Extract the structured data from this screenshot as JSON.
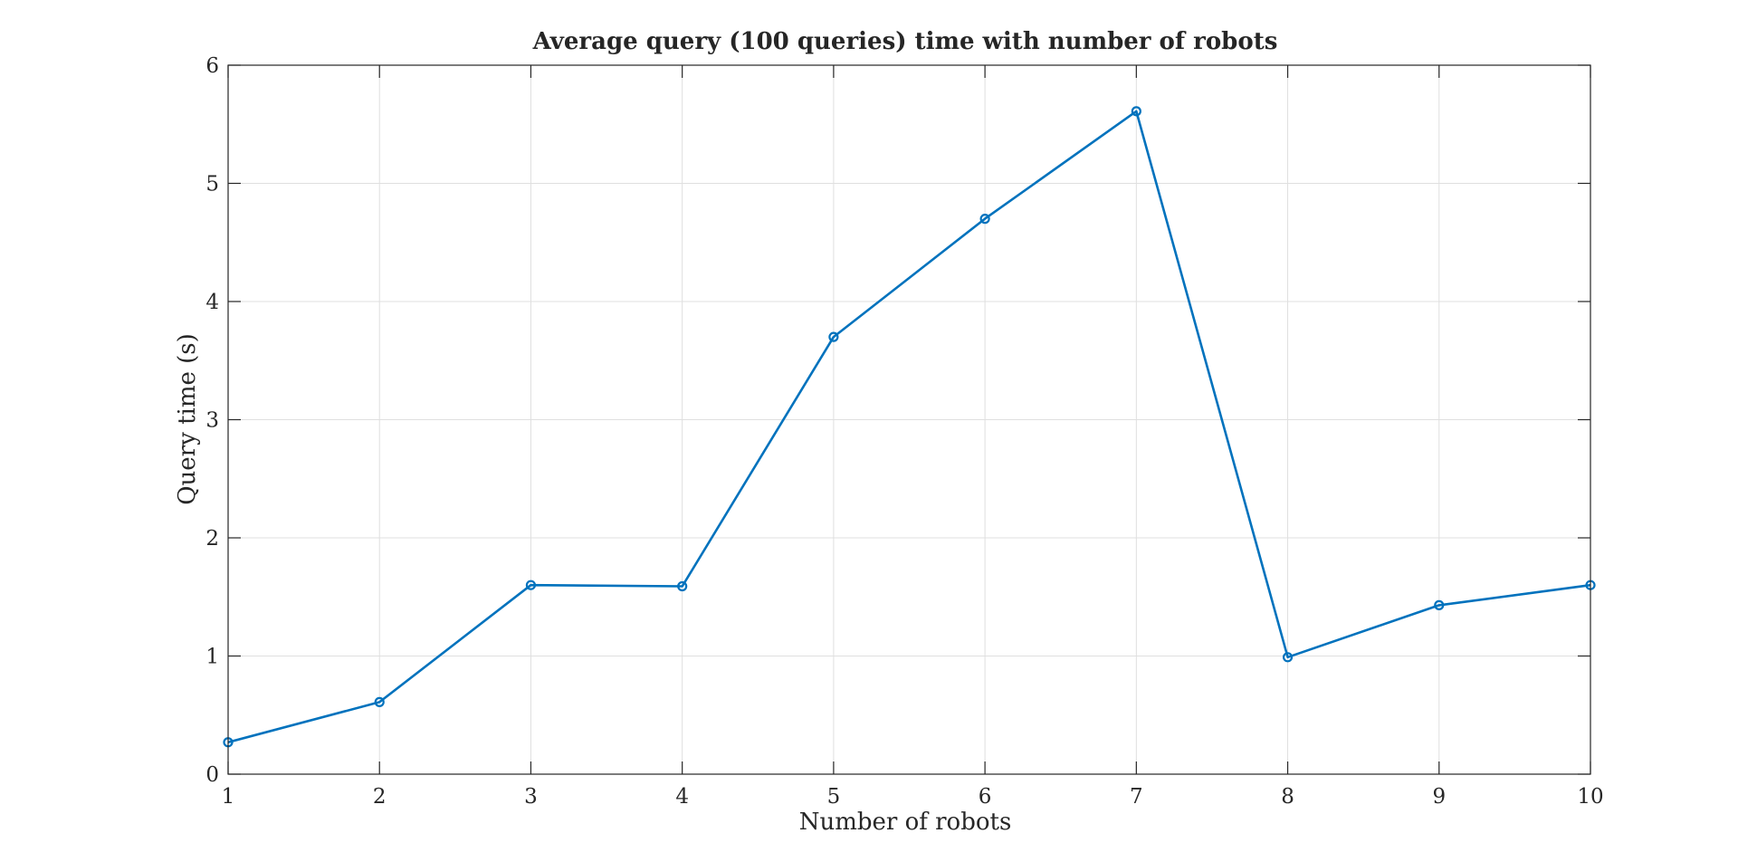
{
  "chart_data": {
    "type": "line",
    "title": "Average query (100 queries) time with number of robots",
    "xlabel": "Number of robots",
    "ylabel": "Query time (s)",
    "xlim": [
      1,
      10
    ],
    "ylim": [
      0,
      6
    ],
    "xticks": [
      1,
      2,
      3,
      4,
      5,
      6,
      7,
      8,
      9,
      10
    ],
    "yticks": [
      0,
      1,
      2,
      3,
      4,
      5,
      6
    ],
    "grid": true,
    "series": [
      {
        "color": "#0072bd",
        "marker": "circle",
        "x": [
          1,
          2,
          3,
          4,
          5,
          6,
          7,
          8,
          9,
          10
        ],
        "y": [
          0.27,
          0.61,
          1.6,
          1.59,
          3.7,
          4.7,
          5.61,
          0.99,
          1.43,
          1.6
        ]
      }
    ]
  }
}
